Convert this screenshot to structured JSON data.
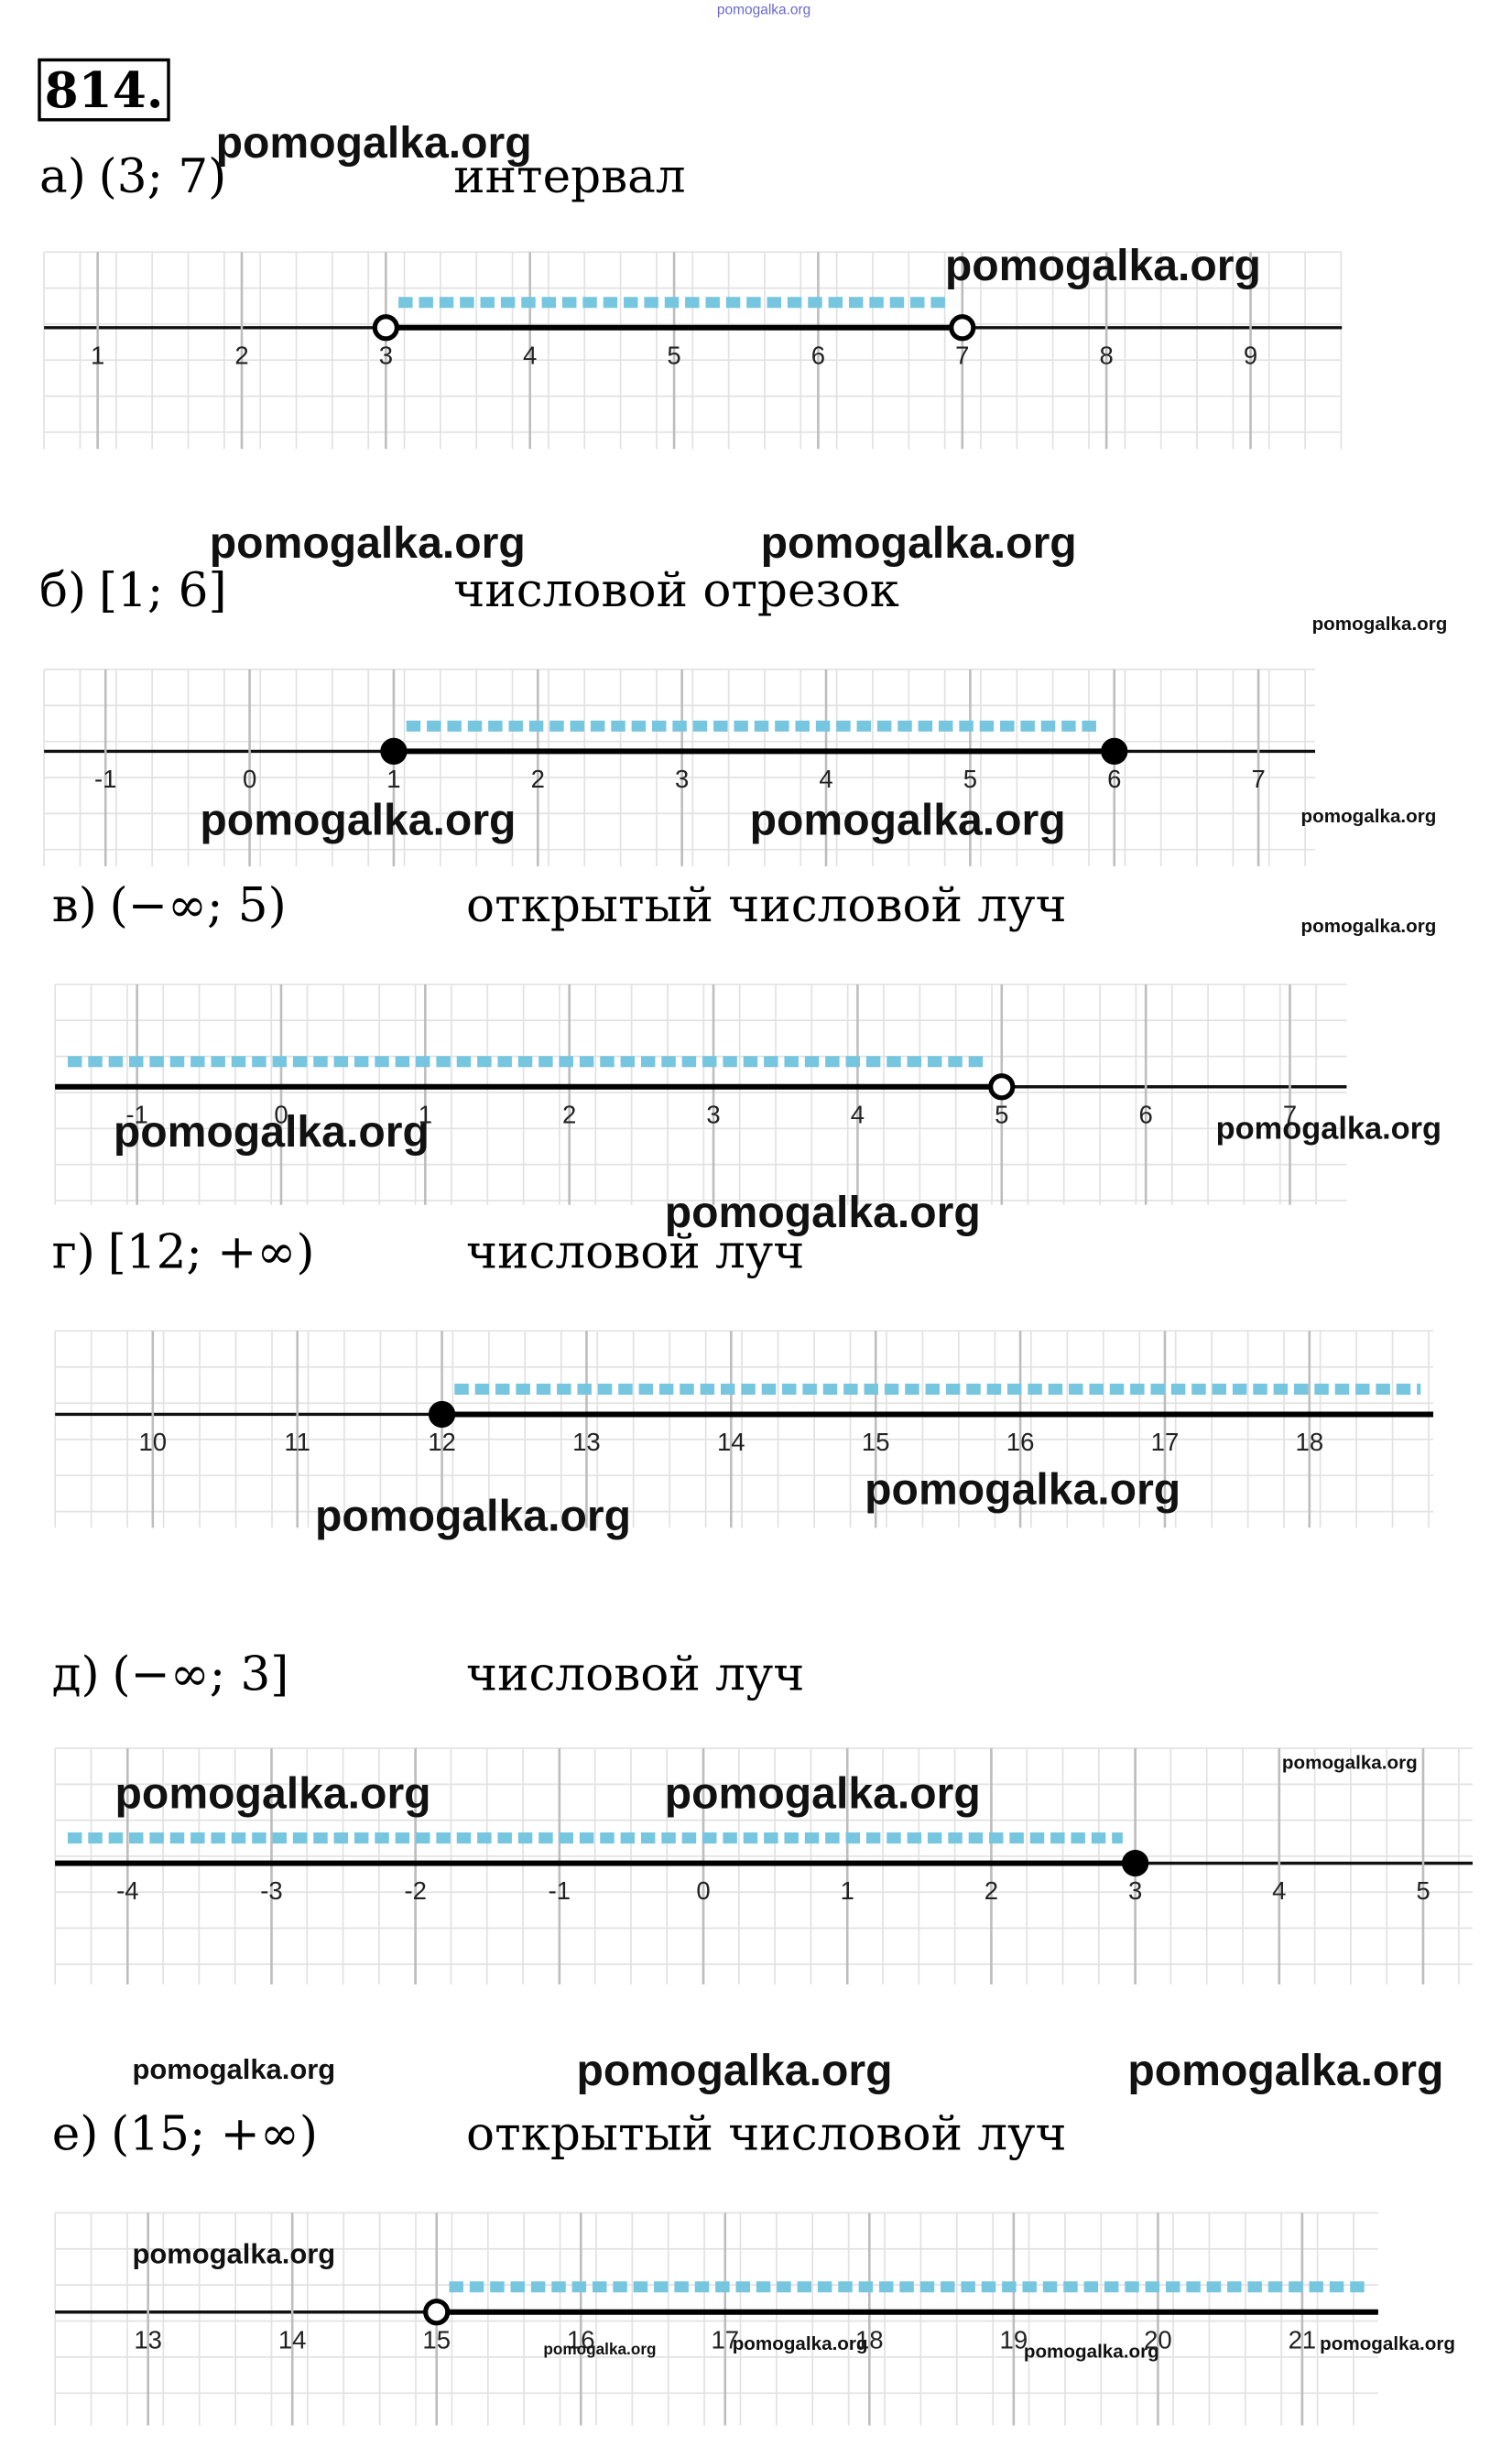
{
  "header_watermark": "pomogalka.org",
  "problem": "814.",
  "items": [
    {
      "label": "а)",
      "interval": "(3; 7)",
      "description": "интервал",
      "ticks": [
        1,
        2,
        3,
        4,
        5,
        6,
        7,
        8,
        9
      ],
      "points": [
        3,
        7
      ],
      "closed": false,
      "shade": "between",
      "watermarks": [
        "pomogalka.org",
        "pomogalka.org"
      ]
    },
    {
      "label": "б)",
      "interval": "[1; 6]",
      "description": "числовой отрезок",
      "ticks": [
        -1,
        0,
        1,
        2,
        3,
        4,
        5,
        6,
        7
      ],
      "points": [
        1,
        6
      ],
      "closed": true,
      "shade": "between",
      "watermarks": [
        "pomogalka.org",
        "pomogalka.org",
        "pomogalka.org",
        "pomogalka.org",
        "pomogalka.org",
        "pomogalka.org"
      ]
    },
    {
      "label": "в)",
      "interval": "(−∞; 5)",
      "description": "открытый числовой луч",
      "ticks": [
        -1,
        0,
        1,
        2,
        3,
        4,
        5,
        6,
        7
      ],
      "points": [
        5
      ],
      "closed": false,
      "shade": "left",
      "watermarks": [
        "pomogalka.org",
        "pomogalka.org",
        "pomogalka.org"
      ]
    },
    {
      "label": "г)",
      "interval": "[12; +∞)",
      "description": "числовой луч",
      "ticks": [
        10,
        11,
        12,
        13,
        14,
        15,
        16,
        17,
        18
      ],
      "points": [
        12
      ],
      "closed": true,
      "shade": "right",
      "watermarks": [
        "pomogalka.org",
        "pomogalka.org",
        "pomogalka.org"
      ]
    },
    {
      "label": "д)",
      "interval": "(−∞; 3]",
      "description": "числовой луч",
      "ticks": [
        -4,
        -3,
        -2,
        -1,
        0,
        1,
        2,
        3,
        4,
        5
      ],
      "points": [
        3
      ],
      "closed": true,
      "shade": "left",
      "watermarks": [
        "pomogalka.org",
        "pomogalka.org",
        "pomogalka.org"
      ]
    },
    {
      "label": "е)",
      "interval": "(15; +∞)",
      "description": "открытый числовой луч",
      "ticks": [
        13,
        14,
        15,
        16,
        17,
        18,
        19,
        20,
        21
      ],
      "points": [
        15
      ],
      "closed": false,
      "shade": "right",
      "watermarks": [
        "pomogalka.org",
        "pomogalka.org",
        "pomogalka.org",
        "pomogalka.org",
        "pomogalka.org",
        "pomogalka.org",
        "pomogalka.org",
        "pomogalka.org"
      ]
    }
  ]
}
